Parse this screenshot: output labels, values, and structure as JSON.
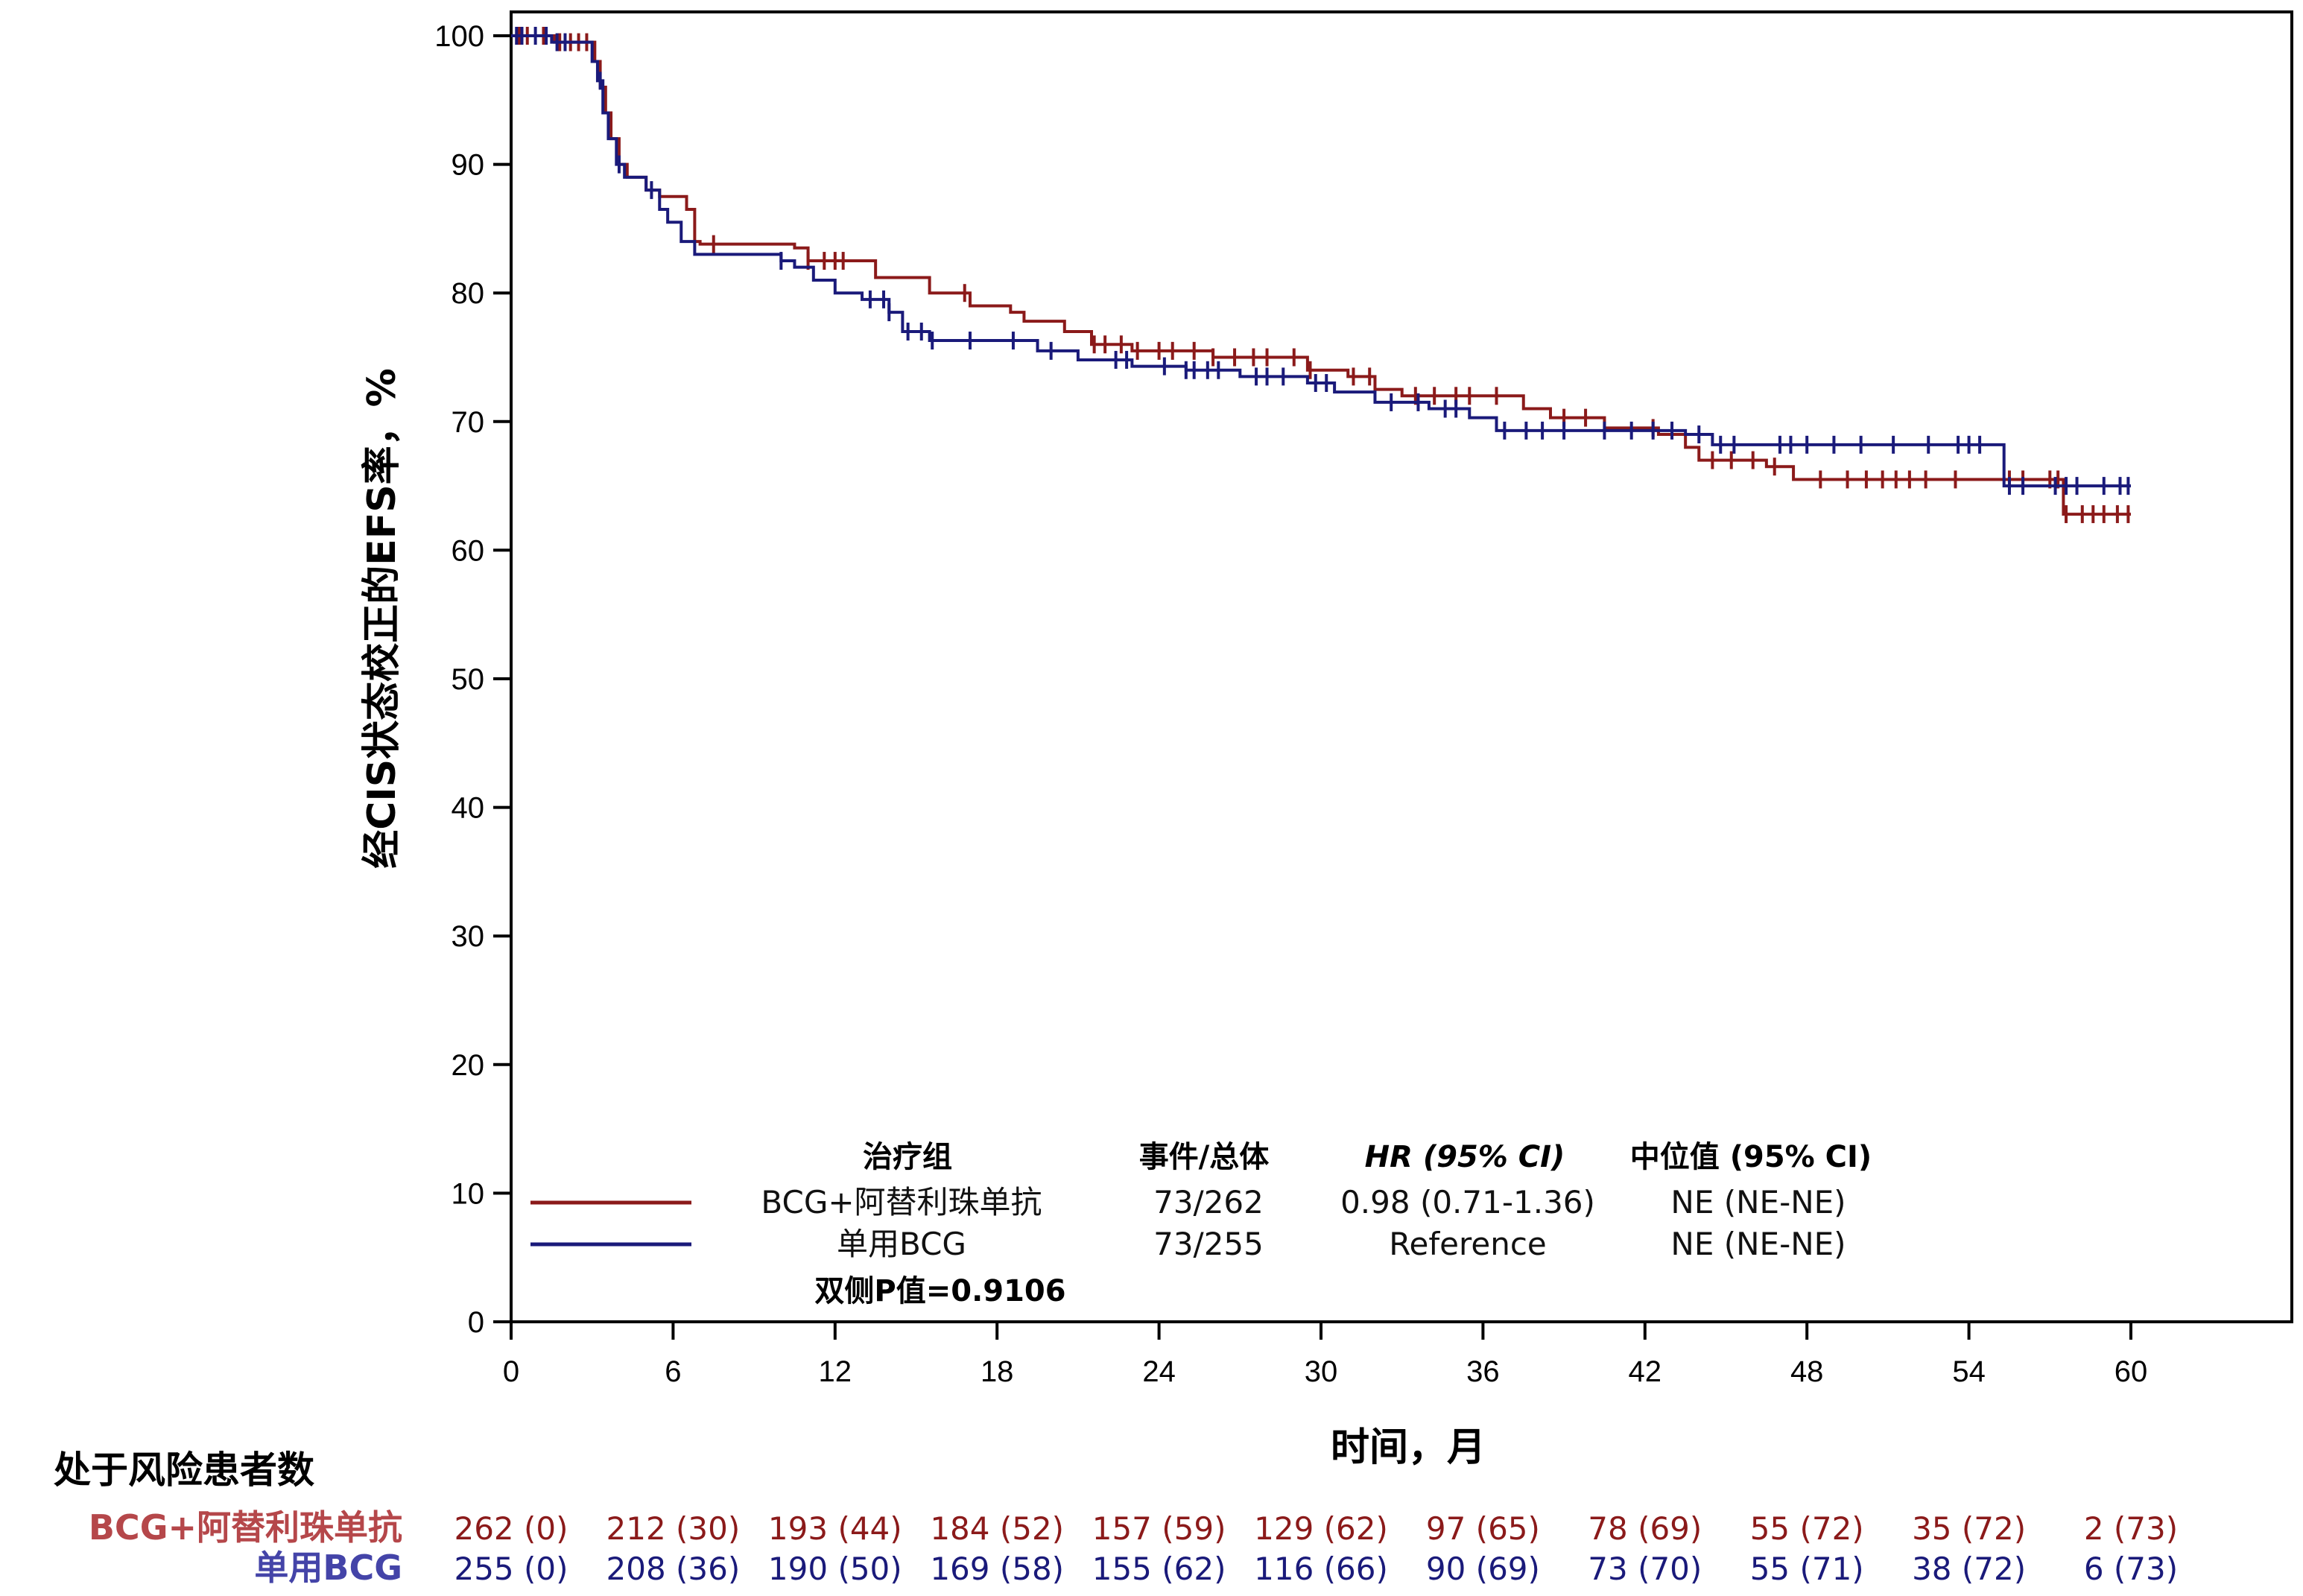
{
  "chart_data": {
    "type": "line",
    "subtype": "kaplan-meier",
    "title": "",
    "xlabel": "时间，月",
    "ylabel": "经CIS状态校正的EFS率，%",
    "xlim": [
      0,
      60
    ],
    "ylim": [
      0,
      100
    ],
    "x_ticks": [
      0,
      6,
      12,
      18,
      24,
      30,
      36,
      42,
      48,
      54,
      60
    ],
    "y_ticks": [
      0,
      10,
      20,
      30,
      40,
      50,
      60,
      70,
      80,
      90,
      100
    ],
    "grid": false,
    "legend_position": "bottom-center",
    "series": [
      {
        "name": "BCG+阿替利珠单抗",
        "color": "#8b1a1a",
        "steps": [
          [
            0,
            100
          ],
          [
            1.6,
            99.5
          ],
          [
            3.1,
            98
          ],
          [
            3.3,
            96
          ],
          [
            3.5,
            94
          ],
          [
            3.7,
            92
          ],
          [
            4.0,
            90
          ],
          [
            4.3,
            89
          ],
          [
            5.0,
            88
          ],
          [
            5.5,
            87.5
          ],
          [
            6.5,
            86.5
          ],
          [
            6.8,
            84
          ],
          [
            7.0,
            83.8
          ],
          [
            10.5,
            83.5
          ],
          [
            11.0,
            82.5
          ],
          [
            13.5,
            81.2
          ],
          [
            15.5,
            80
          ],
          [
            17.0,
            79
          ],
          [
            18.5,
            78.5
          ],
          [
            19.0,
            77.8
          ],
          [
            20.5,
            77
          ],
          [
            21.5,
            76
          ],
          [
            23.0,
            75.5
          ],
          [
            26.0,
            75
          ],
          [
            29.5,
            74
          ],
          [
            31.0,
            73.5
          ],
          [
            32.0,
            72.5
          ],
          [
            33.0,
            72
          ],
          [
            37.5,
            71
          ],
          [
            38.5,
            70.3
          ],
          [
            40.5,
            69.5
          ],
          [
            42.5,
            69
          ],
          [
            43.5,
            68
          ],
          [
            44.0,
            67
          ],
          [
            46.5,
            66.5
          ],
          [
            47.5,
            65.5
          ],
          [
            57.5,
            62.8
          ]
        ],
        "end": 60.0
      },
      {
        "name": "单用BCG",
        "color": "#1a1a7a",
        "steps": [
          [
            0,
            100
          ],
          [
            1.5,
            99.5
          ],
          [
            3.0,
            98
          ],
          [
            3.2,
            96.5
          ],
          [
            3.4,
            94
          ],
          [
            3.6,
            92
          ],
          [
            3.9,
            90
          ],
          [
            4.2,
            89
          ],
          [
            5.0,
            88
          ],
          [
            5.5,
            86.5
          ],
          [
            5.8,
            85.5
          ],
          [
            6.3,
            84
          ],
          [
            6.8,
            83
          ],
          [
            10.0,
            82.5
          ],
          [
            10.5,
            82
          ],
          [
            11.2,
            81
          ],
          [
            12.0,
            80
          ],
          [
            13.0,
            79.5
          ],
          [
            14.0,
            78.5
          ],
          [
            14.5,
            77
          ],
          [
            15.5,
            76.3
          ],
          [
            19.5,
            75.5
          ],
          [
            21.0,
            74.8
          ],
          [
            23.0,
            74.3
          ],
          [
            25.0,
            74
          ],
          [
            27.0,
            73.5
          ],
          [
            29.5,
            73
          ],
          [
            30.5,
            72.3
          ],
          [
            32.0,
            71.5
          ],
          [
            34.0,
            71
          ],
          [
            35.5,
            70.3
          ],
          [
            36.5,
            69.3
          ],
          [
            43.5,
            69
          ],
          [
            44.5,
            68.2
          ],
          [
            55.3,
            65
          ]
        ],
        "end": 60.0
      }
    ],
    "censor_marks": {
      "BCG+阿替利珠单抗": [
        0.3,
        0.6,
        1.2,
        1.8,
        2.2,
        2.5,
        2.8,
        7.5,
        11.0,
        11.6,
        12.0,
        12.3,
        16.8,
        21.6,
        22.0,
        22.6,
        23.2,
        24.0,
        24.5,
        25.3,
        26.0,
        26.8,
        27.5,
        28.0,
        29.0,
        29.6,
        31.2,
        31.8,
        33.5,
        34.2,
        35.0,
        35.5,
        36.5,
        39.0,
        39.8,
        42.3,
        44.5,
        45.2,
        46.0,
        46.8,
        48.5,
        49.5,
        50.2,
        50.8,
        51.3,
        51.8,
        52.4,
        53.5,
        55.5,
        56.0,
        57.0,
        57.3,
        57.6,
        58.2,
        58.6,
        59.0,
        59.5,
        59.9
      ],
      "单用BCG": [
        0.2,
        0.4,
        0.9,
        1.3,
        1.7,
        2.0,
        3.3,
        4.0,
        5.2,
        10.0,
        13.3,
        13.8,
        14.0,
        14.7,
        15.2,
        15.6,
        17.0,
        18.6,
        20.0,
        22.4,
        22.8,
        24.2,
        25.0,
        25.3,
        25.8,
        26.2,
        27.6,
        28.0,
        28.6,
        29.8,
        30.2,
        32.6,
        33.6,
        34.6,
        35.0,
        36.8,
        37.6,
        38.2,
        39.0,
        40.5,
        41.5,
        42.3,
        43.0,
        44.0,
        44.8,
        45.3,
        47.0,
        47.4,
        48.0,
        49.0,
        50.0,
        51.2,
        52.5,
        53.6,
        54.0,
        54.4,
        55.5,
        56.0,
        57.2,
        57.6,
        58.0,
        59.0,
        59.6,
        59.9
      ]
    },
    "legend": {
      "headers": [
        "治疗组",
        "事件/总体",
        "HR (95% CI)",
        "中位值 (95% CI)"
      ],
      "rows": [
        {
          "group": "BCG+阿替利珠单抗",
          "events": "73/262",
          "hr": "0.98 (0.71-1.36)",
          "median": "NE (NE-NE)",
          "color": "#8b1a1a"
        },
        {
          "group": "单用BCG",
          "events": "73/255",
          "hr": "Reference",
          "median": "NE (NE-NE)",
          "color": "#1a1a7a"
        }
      ],
      "pvalue_label": "双侧P值=0.9106"
    },
    "at_risk": {
      "title": "处于风险患者数",
      "times": [
        0,
        6,
        12,
        18,
        24,
        30,
        36,
        42,
        48,
        54,
        60
      ],
      "rows": [
        {
          "label": "BCG+阿替利珠单抗",
          "label_color": "#b5474a",
          "value_color": "#8b1a1a",
          "values": [
            "262 (0)",
            "212 (30)",
            "193 (44)",
            "184 (52)",
            "157 (59)",
            "129 (62)",
            "97 (65)",
            "78 (69)",
            "55 (72)",
            "35 (72)",
            "2 (73)"
          ]
        },
        {
          "label": "单用BCG",
          "label_color": "#4444a8",
          "value_color": "#1a1a7a",
          "values": [
            "255 (0)",
            "208 (36)",
            "190 (50)",
            "169 (58)",
            "155 (62)",
            "116 (66)",
            "90 (69)",
            "73 (70)",
            "55 (71)",
            "38 (72)",
            "6 (73)"
          ]
        }
      ]
    }
  }
}
